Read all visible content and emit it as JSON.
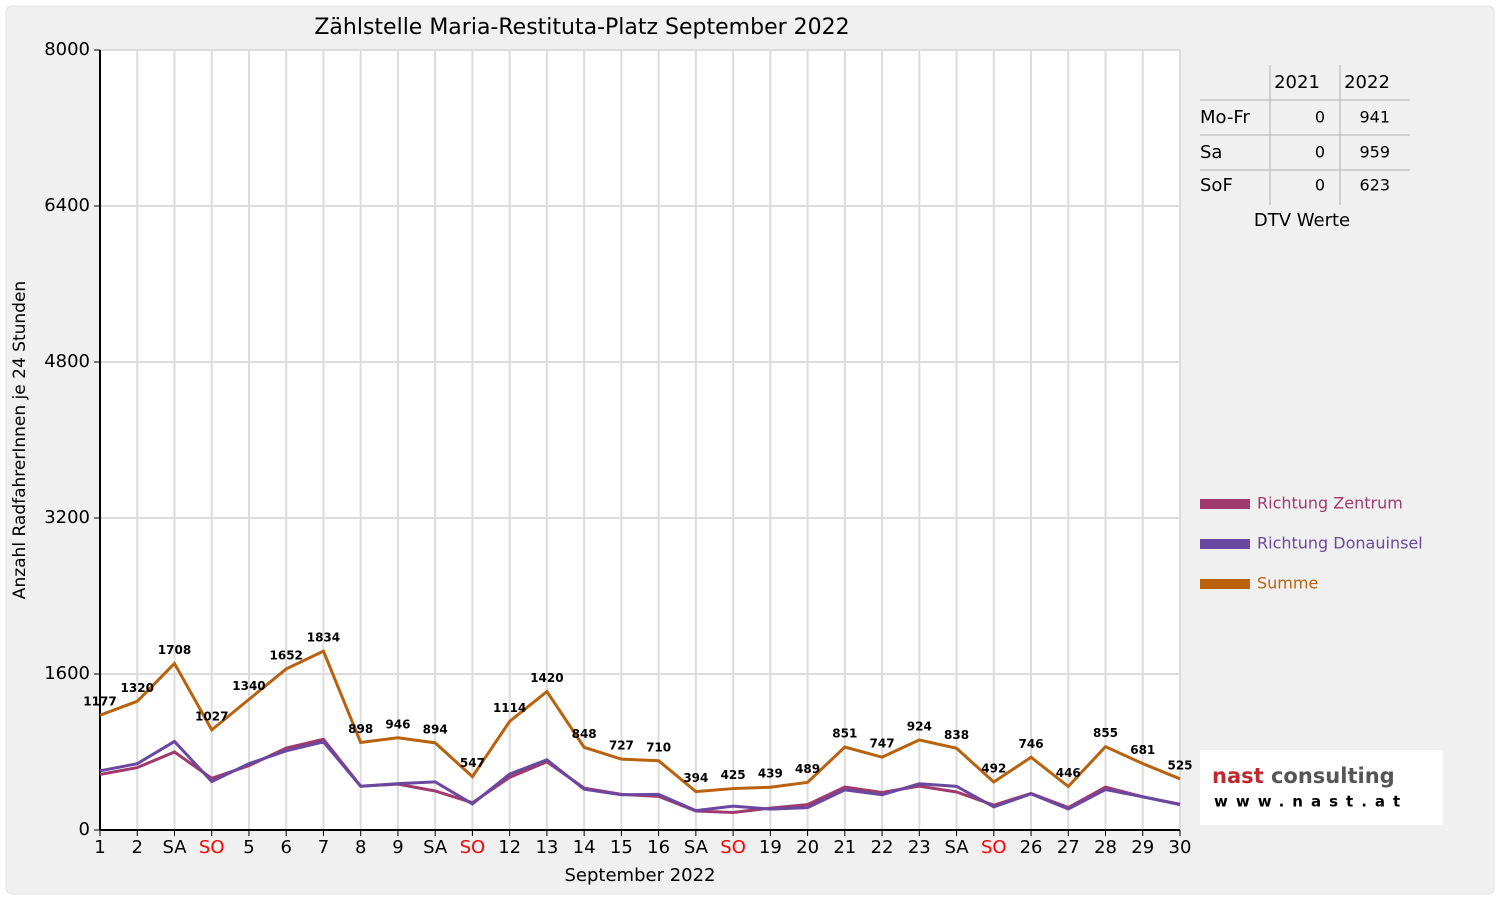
{
  "chart_data": {
    "type": "line",
    "title": "Zählstelle Maria-Restituta-Platz September 2022",
    "x_label": "September 2022",
    "y_label": "Anzahl RadfahrerInnen je 24 Stunden",
    "categories": [
      "1",
      "2",
      "SA",
      "SO",
      "5",
      "6",
      "7",
      "8",
      "9",
      "SA",
      "SO",
      "12",
      "13",
      "14",
      "15",
      "16",
      "SA",
      "SO",
      "19",
      "20",
      "21",
      "22",
      "23",
      "SA",
      "SO",
      "26",
      "27",
      "28",
      "29",
      "30"
    ],
    "category_label_colors": [
      "#000000",
      "#000000",
      "#000000",
      "#ff0000",
      "#000000",
      "#000000",
      "#000000",
      "#000000",
      "#000000",
      "#000000",
      "#ff0000",
      "#000000",
      "#000000",
      "#000000",
      "#000000",
      "#000000",
      "#000000",
      "#ff0000",
      "#000000",
      "#000000",
      "#000000",
      "#000000",
      "#000000",
      "#000000",
      "#ff0000",
      "#000000",
      "#000000",
      "#000000",
      "#000000",
      "#000000"
    ],
    "series": [
      {
        "name": "Richtung Zentrum",
        "color": "#a03a6c",
        "values": [
          570,
          640,
          800,
          530,
          660,
          840,
          930,
          450,
          470,
          400,
          280,
          540,
          700,
          430,
          365,
          345,
          195,
          180,
          225,
          260,
          440,
          385,
          450,
          390,
          255,
          375,
          230,
          440,
          340,
          265
        ]
      },
      {
        "name": "Richtung Donauinsel",
        "color": "#6a48a0",
        "values": [
          607,
          680,
          908,
          497,
          680,
          812,
          904,
          448,
          476,
          494,
          267,
          574,
          720,
          418,
          362,
          365,
          199,
          245,
          214,
          229,
          411,
          362,
          474,
          448,
          237,
          371,
          216,
          415,
          341,
          260
        ]
      },
      {
        "name": "Summe",
        "color": "#b8620e",
        "data_labels": true,
        "values": [
          1177,
          1320,
          1708,
          1027,
          1340,
          1652,
          1834,
          898,
          946,
          894,
          547,
          1114,
          1420,
          848,
          727,
          710,
          394,
          425,
          439,
          489,
          851,
          747,
          924,
          838,
          492,
          746,
          446,
          855,
          681,
          525
        ]
      }
    ],
    "ylim": [
      0,
      8000
    ],
    "yticks": [
      0,
      1600,
      3200,
      4800,
      6400,
      8000
    ],
    "grid": true,
    "legend": "right"
  },
  "dtv_table": {
    "header": [
      "2021",
      "2022"
    ],
    "rows": [
      [
        "Mo-Fr",
        "0",
        "941"
      ],
      [
        "Sa",
        "0",
        "959"
      ],
      [
        "SoF",
        "0",
        "623"
      ]
    ],
    "caption": "DTV Werte"
  },
  "logo": {
    "words": [
      "nast",
      "consulting"
    ],
    "url": "www.nast.at"
  }
}
